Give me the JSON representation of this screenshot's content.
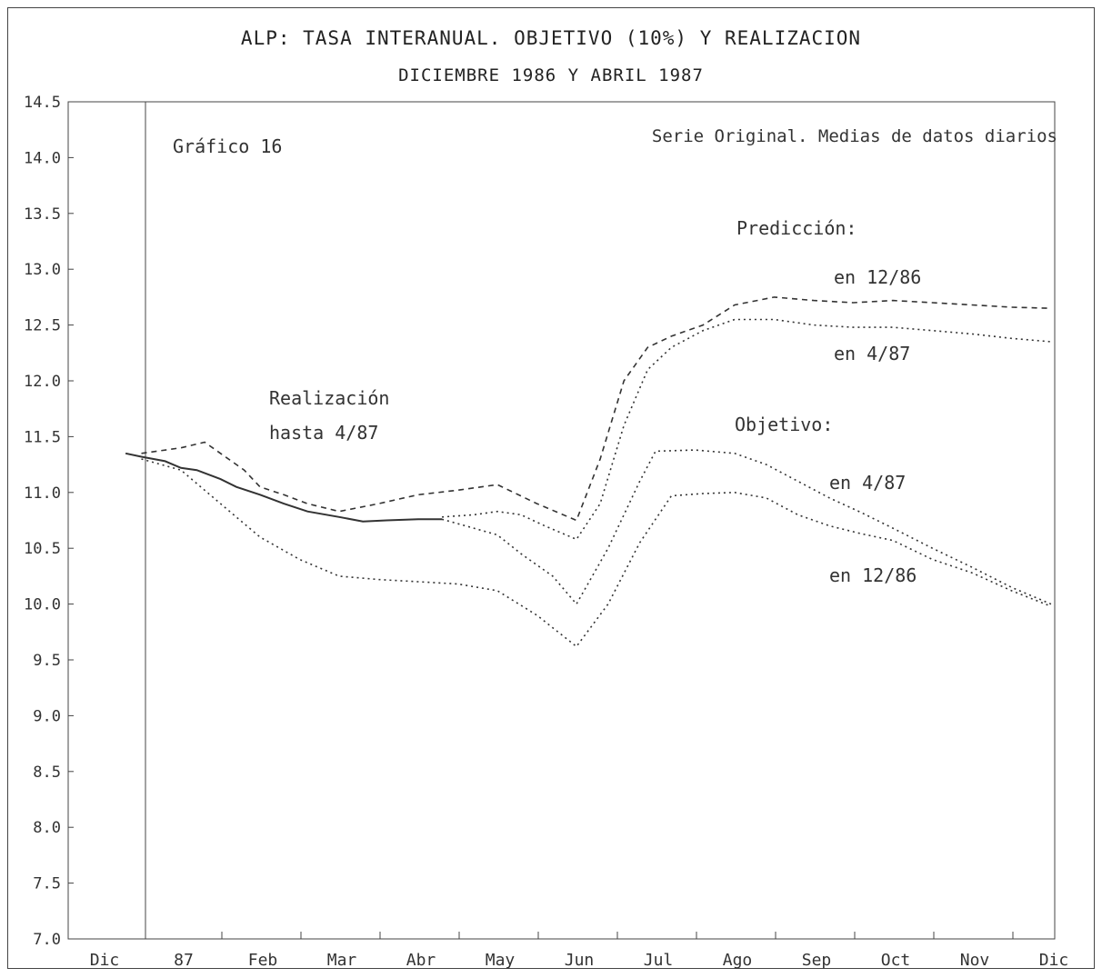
{
  "chart_data": {
    "type": "line",
    "title": "ALP: TASA INTERANUAL. OBJETIVO (10%) Y REALIZACION",
    "subtitle": "DICIEMBRE 1986 Y ABRIL 1987",
    "chart_label": "Gráfico 16",
    "note": "Serie Original. Medias de datos diarios",
    "ylim": [
      7.0,
      14.5
    ],
    "yticks": [
      7.0,
      7.5,
      8.0,
      8.5,
      9.0,
      9.5,
      10.0,
      10.5,
      11.0,
      11.5,
      12.0,
      12.5,
      13.0,
      13.5,
      14.0,
      14.5
    ],
    "ytick_labels": [
      "7.0",
      "7.5",
      "8.0",
      "8.5",
      "9.0",
      "9.5",
      "10.0",
      "10.5",
      "11.0",
      "11.5",
      "12.0",
      "12.5",
      "13.0",
      "13.5",
      "14.0",
      "14.5"
    ],
    "categories": [
      "Dic",
      "87",
      "Feb",
      "Mar",
      "Abr",
      "May",
      "Jun",
      "Jul",
      "Ago",
      "Sep",
      "Oct",
      "Nov",
      "Dic"
    ],
    "x": [
      0,
      1,
      2,
      3,
      4,
      5,
      6,
      7,
      8,
      9,
      10,
      11,
      12
    ],
    "series": [
      {
        "label_lines": [
          "Realización",
          "hasta 4/87"
        ],
        "style": "solid",
        "x": [
          0.3,
          0.5,
          0.8,
          1.0,
          1.2,
          1.5,
          1.7,
          2.0,
          2.3,
          2.6,
          3.0,
          3.3,
          3.6,
          4.0,
          4.3
        ],
        "values": [
          11.35,
          11.32,
          11.28,
          11.22,
          11.2,
          11.12,
          11.05,
          10.98,
          10.9,
          10.83,
          10.78,
          10.74,
          10.75,
          10.76,
          10.76
        ]
      },
      {
        "label_lines": [
          "Objetivo:",
          "en 12/86"
        ],
        "style": "dotted",
        "x": [
          0.5,
          1.0,
          1.5,
          2.0,
          2.5,
          3.0,
          3.5,
          4.0,
          4.5,
          5.0,
          5.5,
          6.0,
          6.4,
          6.8,
          7.2,
          7.6,
          8.0,
          8.4,
          8.8,
          9.2,
          9.6,
          10.0,
          10.5,
          11.0,
          11.5,
          12.0
        ],
        "values": [
          11.3,
          11.2,
          10.9,
          10.6,
          10.4,
          10.25,
          10.22,
          10.2,
          10.18,
          10.12,
          9.9,
          9.62,
          10.0,
          10.55,
          10.97,
          10.99,
          11.0,
          10.95,
          10.8,
          10.7,
          10.63,
          10.57,
          10.4,
          10.28,
          10.12,
          9.98
        ]
      },
      {
        "label_lines": [
          "Objetivo:",
          "en 4/87"
        ],
        "style": "dotted",
        "x": [
          4.3,
          4.6,
          5.0,
          5.3,
          5.7,
          6.0,
          6.4,
          6.8,
          7.0,
          7.5,
          8.0,
          8.4,
          8.8,
          9.2,
          9.6,
          10.0,
          10.5,
          11.0,
          11.5,
          12.0
        ],
        "values": [
          10.76,
          10.7,
          10.62,
          10.45,
          10.25,
          10.0,
          10.5,
          11.1,
          11.37,
          11.38,
          11.35,
          11.25,
          11.1,
          10.95,
          10.82,
          10.68,
          10.5,
          10.33,
          10.15,
          10.0
        ]
      },
      {
        "label_lines": [
          "Predicción:",
          "en 12/86"
        ],
        "style": "dashed",
        "x": [
          0.5,
          1.0,
          1.3,
          1.5,
          1.8,
          2.0,
          2.3,
          2.6,
          3.0,
          3.5,
          4.0,
          4.5,
          5.0,
          5.5,
          6.0,
          6.3,
          6.6,
          6.9,
          7.2,
          7.6,
          8.0,
          8.5,
          9.0,
          9.5,
          10.0,
          10.5,
          11.0,
          11.5,
          12.0
        ],
        "values": [
          11.35,
          11.4,
          11.45,
          11.35,
          11.2,
          11.05,
          10.98,
          10.9,
          10.83,
          10.9,
          10.98,
          11.02,
          11.07,
          10.9,
          10.75,
          11.3,
          12.0,
          12.3,
          12.4,
          12.5,
          12.68,
          12.75,
          12.72,
          12.7,
          12.72,
          12.7,
          12.68,
          12.66,
          12.65
        ]
      },
      {
        "label_lines": [
          "Predicción:",
          "en 4/87"
        ],
        "style": "dotted",
        "x": [
          4.3,
          4.7,
          5.0,
          5.3,
          5.6,
          6.0,
          6.3,
          6.6,
          6.9,
          7.2,
          7.6,
          8.0,
          8.5,
          9.0,
          9.5,
          10.0,
          10.5,
          11.0,
          11.5,
          12.0
        ],
        "values": [
          10.78,
          10.8,
          10.83,
          10.8,
          10.7,
          10.58,
          10.9,
          11.6,
          12.1,
          12.3,
          12.45,
          12.55,
          12.55,
          12.5,
          12.48,
          12.48,
          12.45,
          12.42,
          12.38,
          12.35
        ]
      }
    ],
    "annotations": [
      "Predicción:",
      "en 12/86",
      "en 4/87",
      "Realización",
      "hasta 4/87",
      "Objetivo:",
      "en 4/87",
      "en 12/86"
    ],
    "grid": false,
    "colors": {
      "line": "#333333",
      "axis": "#444444"
    }
  }
}
